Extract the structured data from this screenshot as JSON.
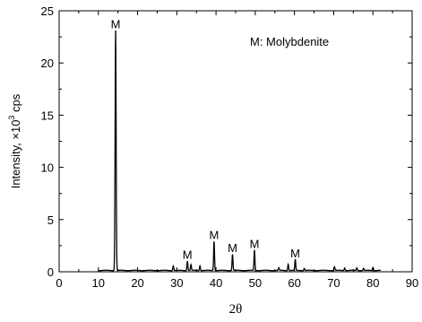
{
  "chart_data": {
    "type": "line",
    "xlabel": "2θ",
    "ylabel_parts": {
      "pre": "Intensity, ×10",
      "sup": "3",
      "post": " cps"
    },
    "xlim": [
      0,
      90
    ],
    "ylim": [
      0,
      25
    ],
    "xticks": [
      0,
      10,
      20,
      30,
      40,
      50,
      60,
      70,
      80,
      90
    ],
    "yticks": [
      0,
      5,
      10,
      15,
      20,
      25
    ],
    "legend_note": "M: Molybdenite",
    "line_color": "#000000",
    "peaks": [
      {
        "x": 14.4,
        "y": 23.0,
        "label": "M"
      },
      {
        "x": 29.1,
        "y": 0.45,
        "label": ""
      },
      {
        "x": 32.7,
        "y": 0.9,
        "label": "M"
      },
      {
        "x": 33.6,
        "y": 0.55,
        "label": ""
      },
      {
        "x": 35.9,
        "y": 0.45,
        "label": ""
      },
      {
        "x": 39.5,
        "y": 2.8,
        "label": "M"
      },
      {
        "x": 44.2,
        "y": 1.55,
        "label": "M"
      },
      {
        "x": 49.8,
        "y": 1.95,
        "label": "M"
      },
      {
        "x": 56.0,
        "y": 0.25,
        "label": ""
      },
      {
        "x": 58.4,
        "y": 0.6,
        "label": ""
      },
      {
        "x": 60.2,
        "y": 1.05,
        "label": "M"
      },
      {
        "x": 62.5,
        "y": 0.2,
        "label": ""
      },
      {
        "x": 70.2,
        "y": 0.35,
        "label": ""
      },
      {
        "x": 72.8,
        "y": 0.25,
        "label": ""
      },
      {
        "x": 75.9,
        "y": 0.25,
        "label": ""
      },
      {
        "x": 77.6,
        "y": 0.2,
        "label": ""
      },
      {
        "x": 80.0,
        "y": 0.3,
        "label": ""
      }
    ]
  }
}
